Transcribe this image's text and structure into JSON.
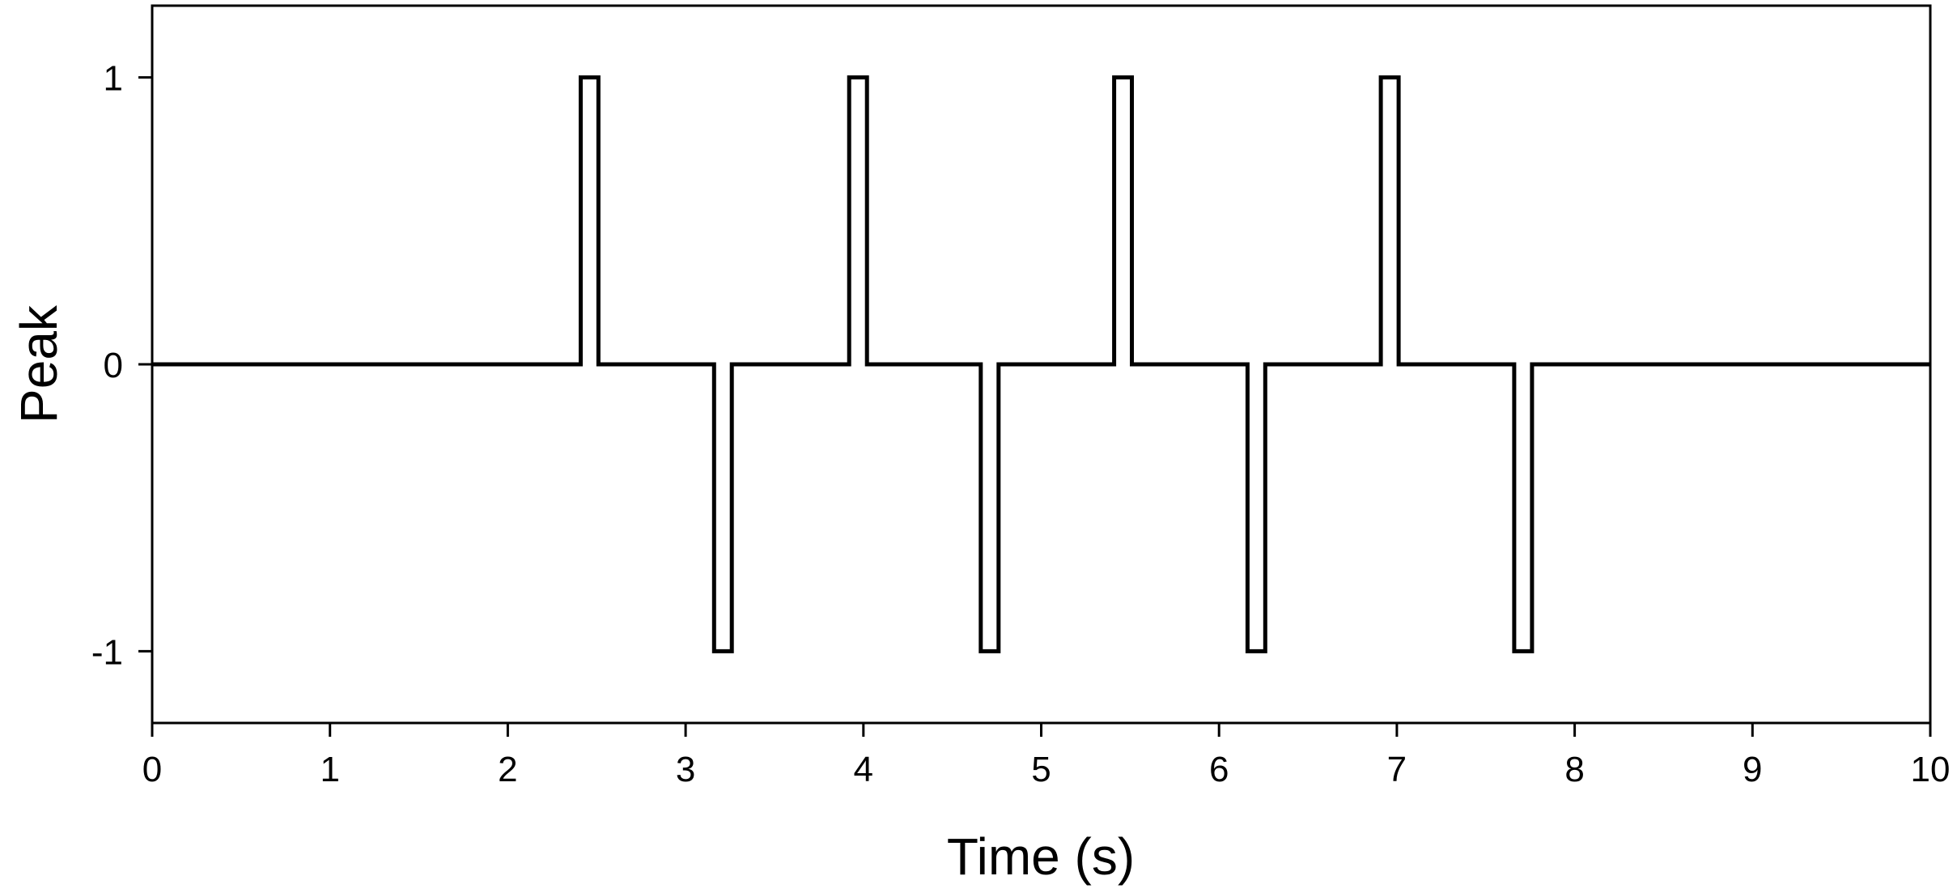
{
  "chart_data": {
    "type": "line",
    "xlabel": "Time (s)",
    "ylabel": "Peak",
    "xlim": [
      0,
      10
    ],
    "ylim": [
      -1.25,
      1.25
    ],
    "x_ticks": [
      0,
      1,
      2,
      3,
      4,
      5,
      6,
      7,
      8,
      9,
      10
    ],
    "x_tick_labels": [
      "0",
      "1",
      "2",
      "3",
      "4",
      "5",
      "6",
      "7",
      "8",
      "9",
      "10"
    ],
    "y_ticks": [
      1,
      0,
      -1
    ],
    "y_tick_labels": [
      "1",
      "0",
      "-1"
    ],
    "grid": false,
    "line_color": "#000000",
    "series": [
      {
        "step": true,
        "x": [
          0,
          2.41,
          2.41,
          2.51,
          2.51,
          3.16,
          3.16,
          3.26,
          3.26,
          3.92,
          3.92,
          4.02,
          4.02,
          4.66,
          4.66,
          4.76,
          4.76,
          5.41,
          5.41,
          5.51,
          5.51,
          6.16,
          6.16,
          6.26,
          6.26,
          6.91,
          6.91,
          7.01,
          7.01,
          7.66,
          7.66,
          7.76,
          7.76,
          10
        ],
        "y": [
          0,
          0,
          1,
          1,
          0,
          0,
          -1,
          -1,
          0,
          0,
          1,
          1,
          0,
          0,
          -1,
          -1,
          0,
          0,
          1,
          1,
          0,
          0,
          -1,
          -1,
          0,
          0,
          1,
          1,
          0,
          0,
          -1,
          -1,
          0,
          0
        ]
      }
    ]
  }
}
